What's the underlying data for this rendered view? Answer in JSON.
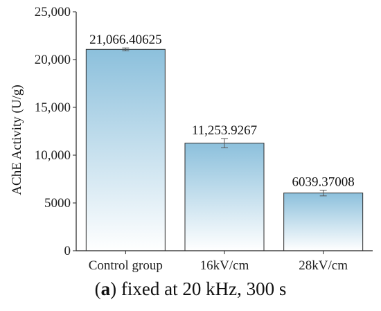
{
  "caption": {
    "letter": "a",
    "text": " fixed at 20 kHz, 300 s"
  },
  "colors": {
    "bar_top": "#8cc0dc",
    "bar_bottom": "#ffffff",
    "bar_stroke": "#2b2b2b",
    "axis": "#222222"
  },
  "chart_data": {
    "type": "bar",
    "title": "",
    "xlabel": "",
    "ylabel": "AChE Activity (U/g)",
    "ylim": [
      0,
      25000
    ],
    "yticks": [
      0,
      5000,
      10000,
      15000,
      20000,
      25000
    ],
    "ytick_labels": [
      "0",
      "5000",
      "10,000",
      "15,000",
      "20,000",
      "25,000"
    ],
    "categories": [
      "Control group",
      "16kV/cm",
      "28kV/cm"
    ],
    "values": [
      21066.40625,
      11253.9267,
      6039.37008
    ],
    "value_labels": [
      "21,066.40625",
      "11,253.9267",
      "6039.37008"
    ],
    "errors": [
      150,
      480,
      300
    ],
    "grid": false,
    "legend": "none"
  }
}
